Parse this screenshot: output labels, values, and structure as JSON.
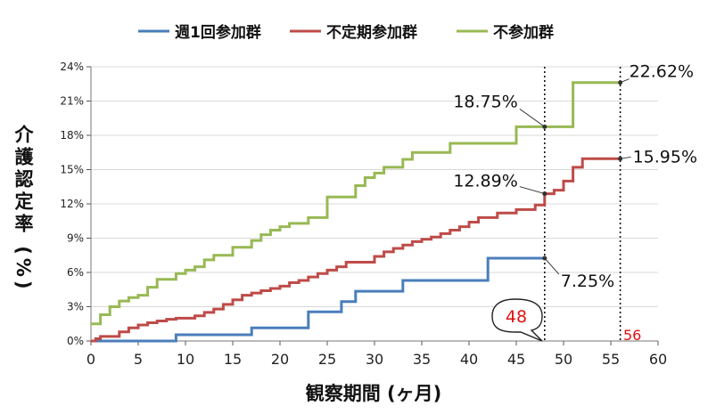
{
  "chart_data": {
    "type": "line",
    "step": true,
    "xlabel": "観察期間 (ヶ月)",
    "ylabel": "介護認定率 (%)",
    "xlim": [
      0,
      60
    ],
    "ylim": [
      0,
      24
    ],
    "xticks": [
      "0",
      "5",
      "10",
      "15",
      "20",
      "25",
      "30",
      "35",
      "40",
      "45",
      "50",
      "55",
      "60"
    ],
    "yticks": [
      "0%",
      "3%",
      "6%",
      "9%",
      "12%",
      "15%",
      "18%",
      "21%",
      "24%"
    ],
    "legend": "top",
    "grid": "horizontal",
    "series": [
      {
        "name": "週1回参加群",
        "color": "#4a7ebb",
        "x": [
          0,
          9,
          17,
          23,
          26.5,
          28,
          33,
          42,
          48
        ],
        "y": [
          0,
          0.55,
          1.15,
          2.55,
          3.45,
          4.35,
          5.3,
          7.25,
          7.25
        ]
      },
      {
        "name": "不定期参加群",
        "color": "#be4b48",
        "x": [
          0,
          0.5,
          1,
          3,
          4,
          5,
          6,
          7,
          8,
          9,
          11,
          12,
          13,
          14,
          15,
          16,
          17,
          18,
          19,
          20,
          21,
          22,
          23,
          24,
          25,
          26,
          27,
          30,
          31,
          32,
          33,
          34,
          35,
          36,
          37,
          38,
          39,
          40,
          41,
          43,
          45,
          47,
          48,
          49,
          50,
          51,
          52,
          56
        ],
        "y": [
          0,
          0.2,
          0.4,
          0.8,
          1.15,
          1.4,
          1.6,
          1.75,
          1.9,
          2.0,
          2.2,
          2.5,
          2.8,
          3.2,
          3.6,
          4.0,
          4.2,
          4.4,
          4.6,
          4.8,
          5.1,
          5.3,
          5.6,
          5.9,
          6.2,
          6.5,
          6.9,
          7.4,
          7.8,
          8.1,
          8.4,
          8.7,
          8.9,
          9.1,
          9.4,
          9.7,
          10.0,
          10.4,
          10.8,
          11.2,
          11.5,
          11.9,
          12.89,
          13.2,
          14.0,
          15.2,
          15.95,
          15.95
        ]
      },
      {
        "name": "不参加群",
        "color": "#98b954",
        "x": [
          0,
          1,
          2,
          3,
          4,
          5,
          6,
          7,
          9,
          10,
          11,
          12,
          13,
          15,
          17,
          18,
          19,
          20,
          21,
          23,
          25,
          26,
          28,
          29,
          30,
          31,
          33,
          34,
          38,
          45,
          51,
          56
        ],
        "y": [
          1.5,
          2.3,
          3.0,
          3.5,
          3.8,
          4.0,
          4.7,
          5.4,
          5.9,
          6.2,
          6.5,
          7.1,
          7.5,
          8.2,
          8.8,
          9.3,
          9.7,
          10.0,
          10.3,
          10.8,
          12.6,
          12.6,
          13.6,
          14.3,
          14.7,
          15.2,
          15.9,
          16.5,
          17.3,
          18.75,
          22.62,
          22.62
        ]
      }
    ],
    "vlines": [
      48,
      56
    ],
    "annotations": [
      {
        "text": "22.62%",
        "x": 56,
        "y": 22.62
      },
      {
        "text": "18.75%",
        "x": 48,
        "y": 18.75
      },
      {
        "text": "15.95%",
        "x": 56,
        "y": 15.95
      },
      {
        "text": "12.89%",
        "x": 48,
        "y": 12.89
      },
      {
        "text": "7.25%",
        "x": 48,
        "y": 7.25
      }
    ],
    "marker_48": "48",
    "marker_56": "56"
  }
}
